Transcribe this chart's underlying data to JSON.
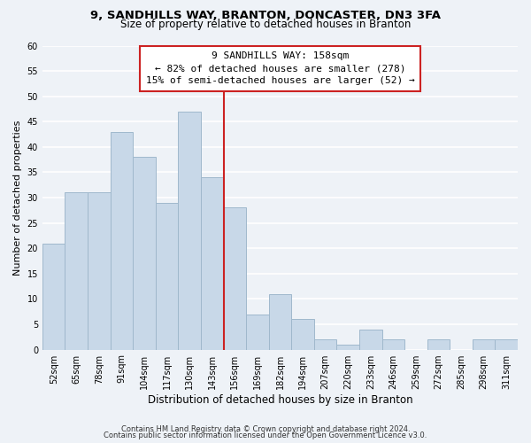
{
  "title_line1": "9, SANDHILLS WAY, BRANTON, DONCASTER, DN3 3FA",
  "title_line2": "Size of property relative to detached houses in Branton",
  "xlabel": "Distribution of detached houses by size in Branton",
  "ylabel": "Number of detached properties",
  "bar_labels": [
    "52sqm",
    "65sqm",
    "78sqm",
    "91sqm",
    "104sqm",
    "117sqm",
    "130sqm",
    "143sqm",
    "156sqm",
    "169sqm",
    "182sqm",
    "194sqm",
    "207sqm",
    "220sqm",
    "233sqm",
    "246sqm",
    "259sqm",
    "272sqm",
    "285sqm",
    "298sqm",
    "311sqm"
  ],
  "bar_values": [
    21,
    31,
    31,
    43,
    38,
    29,
    47,
    34,
    28,
    7,
    11,
    6,
    2,
    1,
    4,
    2,
    0,
    2,
    0,
    2,
    2
  ],
  "bar_color": "#c8d8e8",
  "bar_edge_color": "#a0b8cc",
  "vline_color": "#cc2222",
  "ylim": [
    0,
    60
  ],
  "yticks": [
    0,
    5,
    10,
    15,
    20,
    25,
    30,
    35,
    40,
    45,
    50,
    55,
    60
  ],
  "annotation_title": "9 SANDHILLS WAY: 158sqm",
  "annotation_line2": "← 82% of detached houses are smaller (278)",
  "annotation_line3": "15% of semi-detached houses are larger (52) →",
  "annotation_box_color": "#ffffff",
  "annotation_box_edge": "#cc2222",
  "footer_line1": "Contains HM Land Registry data © Crown copyright and database right 2024.",
  "footer_line2": "Contains public sector information licensed under the Open Government Licence v3.0.",
  "background_color": "#eef2f7",
  "grid_color": "#ffffff",
  "title_fontsize": 9.5,
  "subtitle_fontsize": 8.5,
  "tick_fontsize": 7,
  "xlabel_fontsize": 8.5,
  "ylabel_fontsize": 8,
  "annotation_fontsize": 8,
  "footer_fontsize": 6
}
